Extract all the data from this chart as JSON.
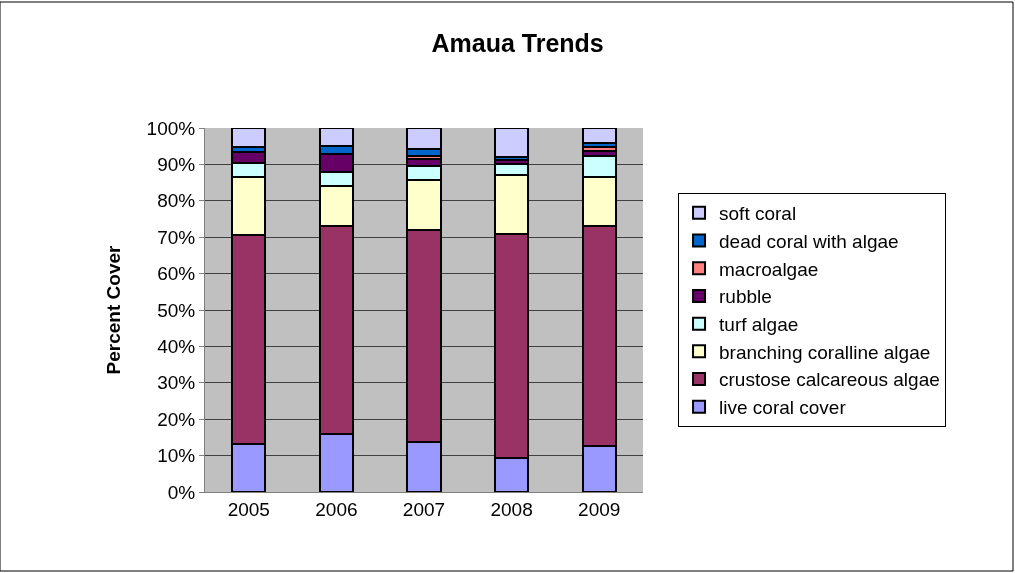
{
  "chart_data": {
    "type": "bar",
    "stacked": true,
    "title": "Amaua Trends",
    "ylabel": "Percent Cover",
    "categories": [
      "2005",
      "2006",
      "2007",
      "2008",
      "2009"
    ],
    "series": [
      {
        "name": "live coral cover",
        "color": "#9999ff",
        "values": [
          13.1,
          15.9,
          13.7,
          9.3,
          12.6
        ]
      },
      {
        "name": "crustose calcareous algae",
        "color": "#993366",
        "values": [
          57.4,
          57.1,
          58.3,
          61.7,
          60.4
        ]
      },
      {
        "name": "branching coralline algae",
        "color": "#ffffcc",
        "values": [
          16.1,
          11,
          13.6,
          16.2,
          13.6
        ]
      },
      {
        "name": "turf algae",
        "color": "#ccffff",
        "values": [
          3.8,
          3.8,
          3.9,
          2.8,
          5.6
        ]
      },
      {
        "name": "rubble",
        "color": "#660066",
        "values": [
          2.9,
          5.0,
          2.0,
          1.3,
          1.6
        ]
      },
      {
        "name": "macroalgae",
        "color": "#ff8080",
        "values": [
          0,
          0,
          0.9,
          0,
          1.1
        ]
      },
      {
        "name": "dead coral with algae",
        "color": "#0066cc",
        "values": [
          1.5,
          2.3,
          1.7,
          0.7,
          0.9
        ]
      },
      {
        "name": "soft coral",
        "color": "#ccccff",
        "values": [
          5.2,
          4.9,
          5.9,
          8.0,
          4.2
        ]
      }
    ],
    "ylim": [
      0,
      100
    ],
    "yticks": [
      {
        "value": 0,
        "label": "0%"
      },
      {
        "value": 10,
        "label": "10%"
      },
      {
        "value": 20,
        "label": "20%"
      },
      {
        "value": 30,
        "label": "30%"
      },
      {
        "value": 40,
        "label": "40%"
      },
      {
        "value": 50,
        "label": "50%"
      },
      {
        "value": 60,
        "label": "60%"
      },
      {
        "value": 70,
        "label": "70%"
      },
      {
        "value": 80,
        "label": "80%"
      },
      {
        "value": 90,
        "label": "90%"
      },
      {
        "value": 100,
        "label": "100%"
      }
    ],
    "grid": "y",
    "legend": "right"
  }
}
